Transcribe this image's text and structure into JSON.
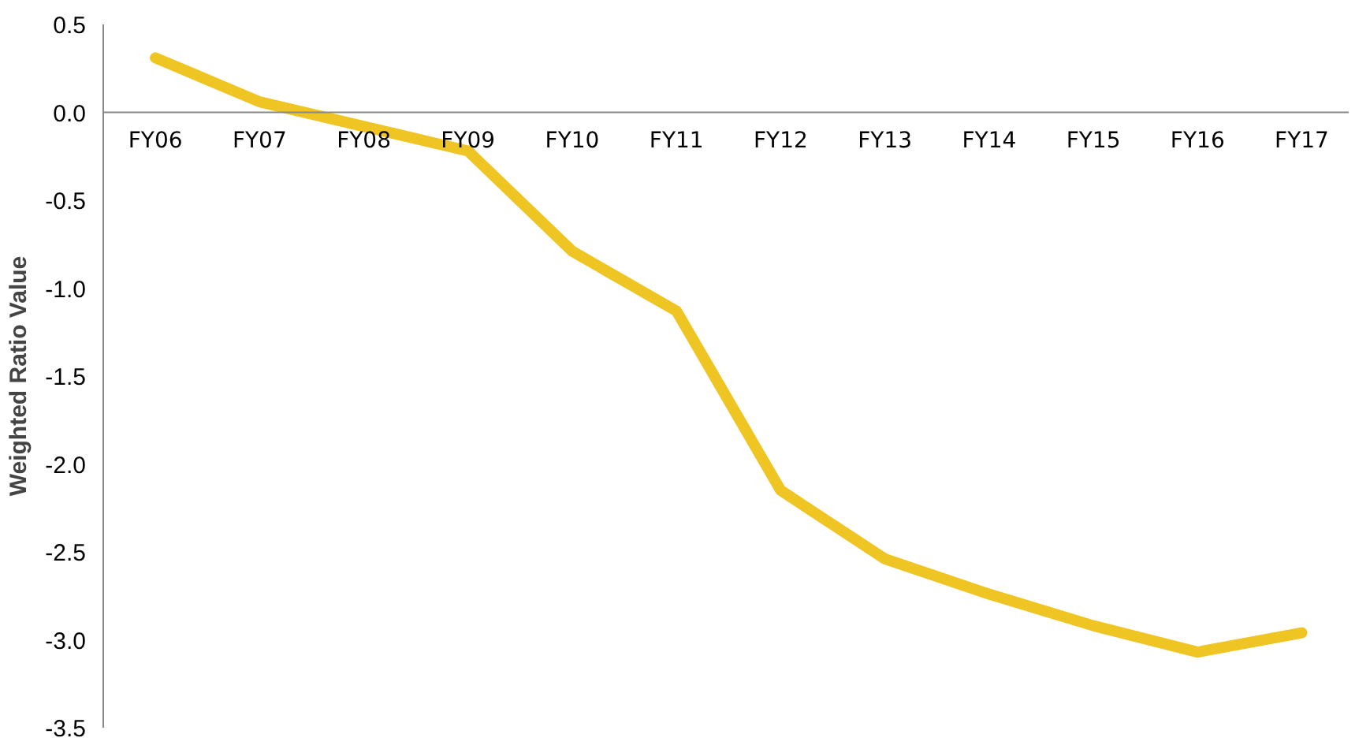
{
  "chart_data": {
    "type": "line",
    "ylabel": "Weighted Ratio Value",
    "categories": [
      "FY06",
      "FY07",
      "FY08",
      "FY09",
      "FY10",
      "FY11",
      "FY12",
      "FY13",
      "FY14",
      "FY15",
      "FY16",
      "FY17"
    ],
    "series": [
      {
        "color": "#efc523",
        "values": [
          0.31,
          0.06,
          -0.08,
          -0.22,
          -0.79,
          -1.13,
          -2.15,
          -2.54,
          -2.74,
          -2.92,
          -3.07,
          -2.96
        ]
      }
    ],
    "ylim": [
      -3.5,
      0.5
    ],
    "yticks": [
      0.5,
      {
        "value": 0,
        "label": "0.0"
      },
      -0.5,
      {
        "value": -1,
        "label": "-1.0"
      },
      -1.5,
      {
        "value": -2,
        "label": "-2.0"
      },
      -2.5,
      {
        "value": -3,
        "label": "-3.0"
      },
      -3.5
    ],
    "grid": false,
    "marker": "none",
    "line_style": "solid"
  }
}
